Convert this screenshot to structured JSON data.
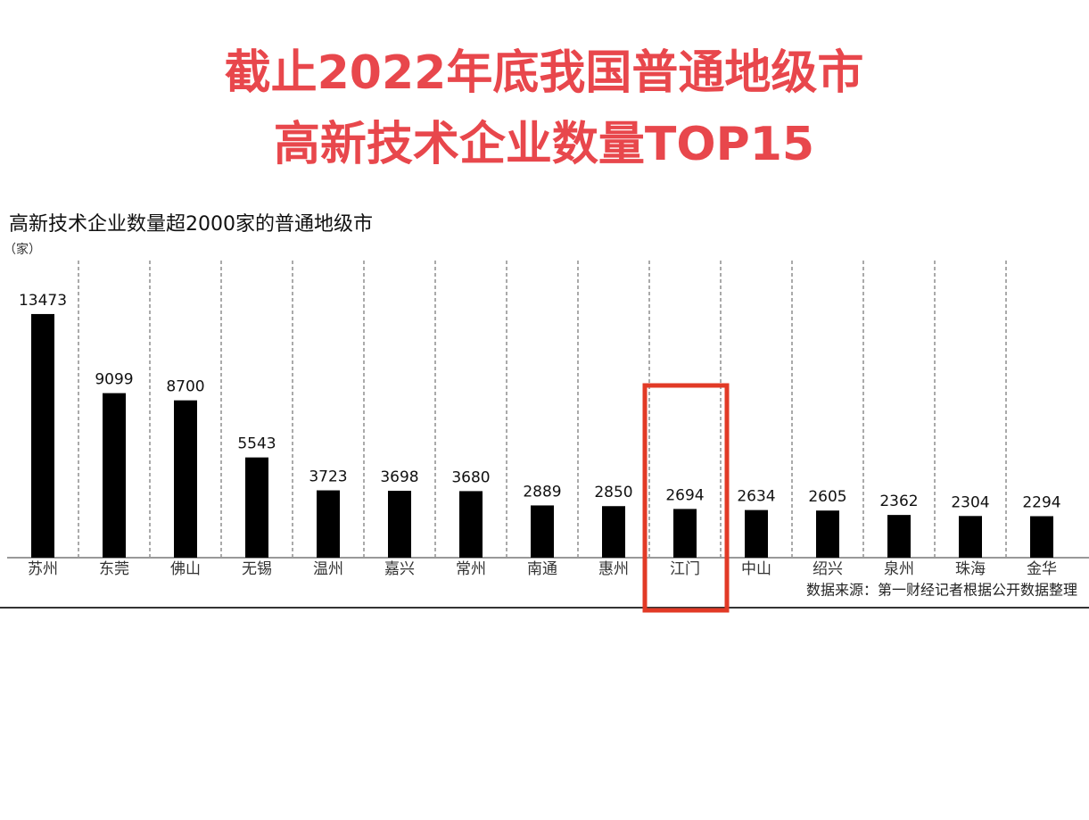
{
  "chart_data": {
    "type": "bar",
    "title": [
      "截止2022年底我国普通地级市",
      "高新技术企业数量TOP15"
    ],
    "subtitle": "高新技术企业数量超2000家的普通地级市",
    "unit": "（家）",
    "source": "数据来源：第一财经记者根据公开数据整理",
    "categories": [
      "苏州",
      "东莞",
      "佛山",
      "无锡",
      "温州",
      "嘉兴",
      "常州",
      "南通",
      "惠州",
      "江门",
      "中山",
      "绍兴",
      "泉州",
      "珠海",
      "金华"
    ],
    "values": [
      13473,
      9099,
      8700,
      5543,
      3723,
      3698,
      3680,
      2889,
      2850,
      2694,
      2634,
      2605,
      2362,
      2304,
      2294
    ],
    "color": "#000000",
    "title_color": "#e8474c",
    "highlight_category": "江门",
    "highlight_color": "#e23a26",
    "ylim": [
      0,
      15000
    ]
  }
}
